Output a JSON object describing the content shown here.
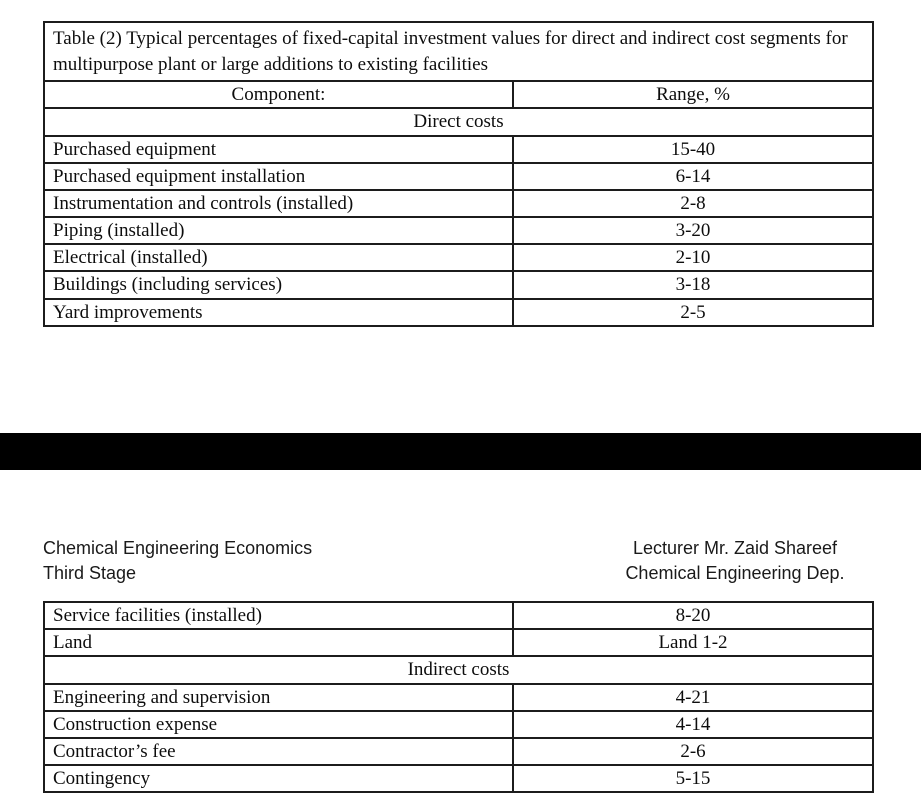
{
  "page": {
    "background_color": "#ffffff",
    "text_color": "#0d0d0d",
    "separator_color": "#000000"
  },
  "table_direct": {
    "title": "Table (2) Typical percentages of fixed-capital investment values for direct and indirect cost segments for multipurpose plant or large additions to existing facilities",
    "col_headers": [
      "Component:",
      "Range, %"
    ],
    "section_label": "Direct costs",
    "rows": [
      {
        "component": "Purchased equipment",
        "range": "15-40"
      },
      {
        "component": "Purchased equipment installation",
        "range": "6-14"
      },
      {
        "component": "Instrumentation and controls (installed)",
        "range": "2-8"
      },
      {
        "component": "Piping (installed)",
        "range": "3-20"
      },
      {
        "component": "Electrical (installed)",
        "range": "2-10"
      },
      {
        "component": "Buildings (including services)",
        "range": "3-18"
      },
      {
        "component": "Yard improvements",
        "range": "2-5"
      }
    ]
  },
  "page_header": {
    "left_line1": "Chemical Engineering Economics",
    "left_line2": "Third Stage",
    "right_line1": "Lecturer Mr. Zaid Shareef",
    "right_line2": "Chemical Engineering Dep."
  },
  "table_indirect": {
    "rows_top": [
      {
        "component": "Service facilities (installed)",
        "range": "8-20"
      },
      {
        "component": "Land",
        "range": "Land 1-2"
      }
    ],
    "section_label": "Indirect costs",
    "rows_bottom": [
      {
        "component": "Engineering and supervision",
        "range": "4-21"
      },
      {
        "component": "Construction expense",
        "range": "4-14"
      },
      {
        "component": "Contractor’s fee",
        "range": "2-6"
      },
      {
        "component": "Contingency",
        "range": "5-15"
      }
    ]
  }
}
